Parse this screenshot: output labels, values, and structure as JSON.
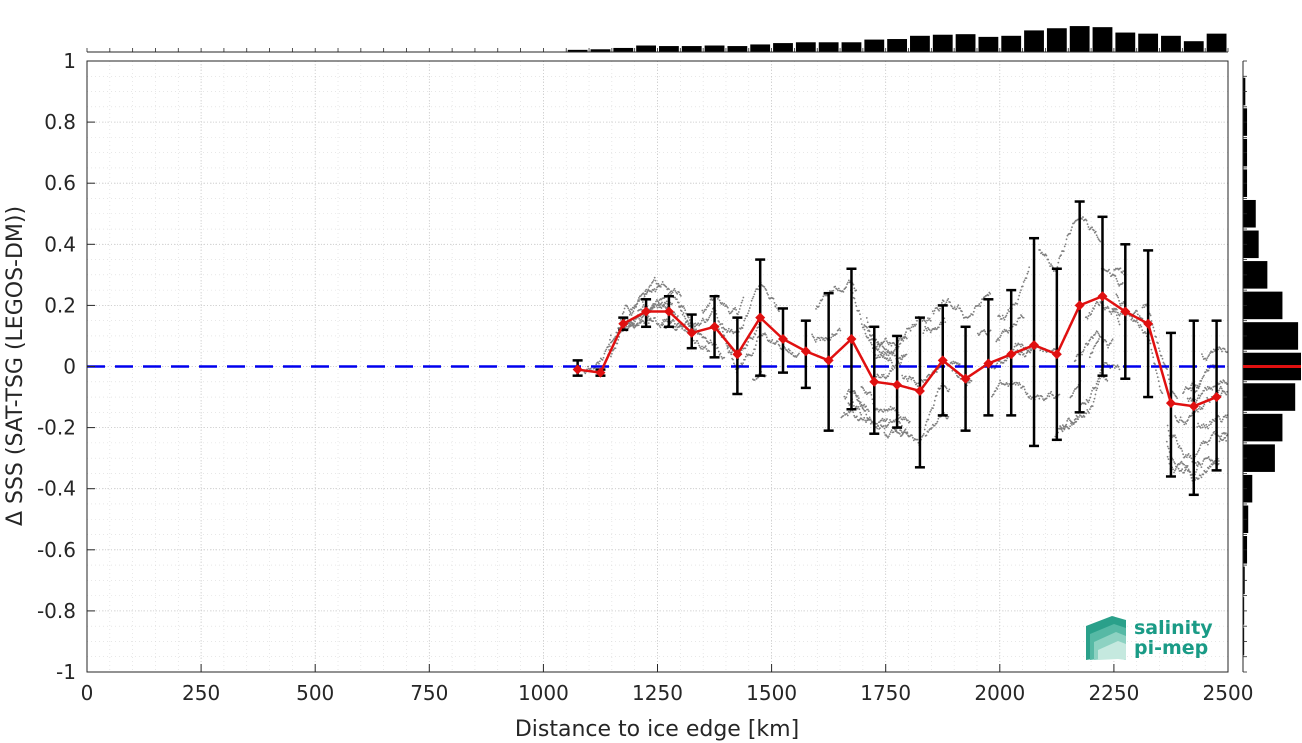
{
  "chart_data": {
    "type": "line",
    "title": "",
    "xlabel": "Distance to ice edge [km]",
    "ylabel": "Δ SSS (SAT-TSG (LEGOS-DM))",
    "xlim": [
      0,
      2500
    ],
    "ylim": [
      -1,
      1
    ],
    "x_ticks": [
      "0",
      "250",
      "500",
      "750",
      "1000",
      "1250",
      "1500",
      "1750",
      "2000",
      "2250",
      "2500"
    ],
    "y_ticks": [
      "-1",
      "-0.8",
      "-0.6",
      "-0.4",
      "-0.2",
      "0",
      "0.2",
      "0.4",
      "0.6",
      "0.8",
      "1"
    ],
    "grid": true,
    "reference_line": {
      "y": 0,
      "color": "#0000ee",
      "style": "dashed"
    },
    "mean_series": {
      "name": "",
      "color": "#e01010",
      "x": [
        1075,
        1125,
        1175,
        1225,
        1275,
        1325,
        1375,
        1425,
        1475,
        1525,
        1575,
        1625,
        1675,
        1725,
        1775,
        1825,
        1875,
        1925,
        1975,
        2025,
        2075,
        2125,
        2175,
        2225,
        2275,
        2325,
        2375,
        2425,
        2475
      ],
      "y": [
        -0.01,
        -0.02,
        0.14,
        0.18,
        0.18,
        0.11,
        0.13,
        0.04,
        0.16,
        0.09,
        0.05,
        0.02,
        0.09,
        -0.05,
        -0.06,
        -0.08,
        0.02,
        -0.04,
        0.01,
        0.04,
        0.07,
        0.04,
        0.2,
        0.23,
        0.18,
        0.14,
        -0.12,
        -0.13,
        -0.1
      ],
      "err_low": [
        -0.03,
        -0.03,
        0.12,
        0.13,
        0.13,
        0.06,
        0.03,
        -0.09,
        -0.03,
        -0.02,
        -0.07,
        -0.21,
        -0.14,
        -0.22,
        -0.2,
        -0.33,
        -0.16,
        -0.21,
        -0.16,
        -0.16,
        -0.26,
        -0.24,
        -0.15,
        -0.03,
        -0.04,
        -0.1,
        -0.36,
        -0.42,
        -0.34
      ],
      "err_high": [
        0.02,
        -0.01,
        0.16,
        0.22,
        0.23,
        0.17,
        0.23,
        0.16,
        0.35,
        0.19,
        0.15,
        0.24,
        0.32,
        0.13,
        0.1,
        0.16,
        0.2,
        0.13,
        0.22,
        0.25,
        0.42,
        0.32,
        0.54,
        0.49,
        0.4,
        0.38,
        0.11,
        0.15,
        0.15
      ]
    },
    "top_histogram": {
      "bin_centers": [
        1075,
        1125,
        1175,
        1225,
        1275,
        1325,
        1375,
        1425,
        1475,
        1525,
        1575,
        1625,
        1675,
        1725,
        1775,
        1825,
        1875,
        1925,
        1975,
        2025,
        2075,
        2125,
        2175,
        2225,
        2275,
        2325,
        2375,
        2425,
        2475
      ],
      "relative_counts": [
        0.08,
        0.1,
        0.15,
        0.24,
        0.22,
        0.22,
        0.24,
        0.22,
        0.28,
        0.33,
        0.36,
        0.36,
        0.36,
        0.46,
        0.48,
        0.6,
        0.64,
        0.66,
        0.56,
        0.6,
        0.8,
        0.88,
        0.96,
        0.92,
        0.72,
        0.68,
        0.6,
        0.4,
        0.68
      ]
    },
    "right_histogram": {
      "bin_centers": [
        -0.9,
        -0.8,
        -0.7,
        -0.6,
        -0.5,
        -0.4,
        -0.3,
        -0.2,
        -0.1,
        0.0,
        0.1,
        0.2,
        0.3,
        0.4,
        0.5,
        0.6,
        0.7,
        0.8,
        0.9
      ],
      "relative_counts": [
        0.02,
        0.02,
        0.03,
        0.07,
        0.09,
        0.16,
        0.55,
        0.68,
        0.9,
        1.0,
        0.95,
        0.68,
        0.42,
        0.27,
        0.22,
        0.07,
        0.07,
        0.07,
        0.04
      ],
      "median_line": {
        "y": 0.0,
        "color": "#e01010"
      }
    },
    "scatter_color": "#7f7f7f"
  },
  "logo": {
    "line1": "salinity",
    "line2": "pi-mep"
  }
}
